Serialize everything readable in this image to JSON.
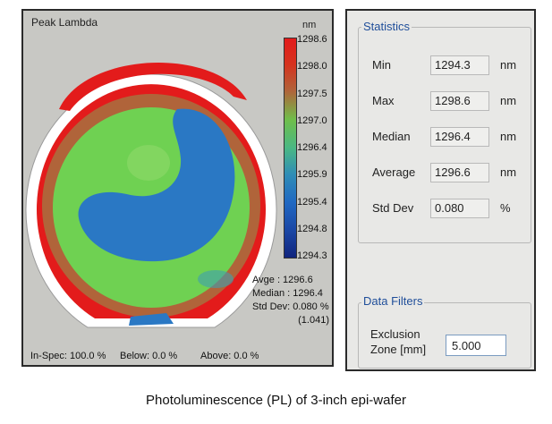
{
  "map": {
    "title": "Peak Lambda",
    "unit": "nm",
    "scale_labels": [
      "1298.6",
      "1298.0",
      "1297.5",
      "1297.0",
      "1296.4",
      "1295.9",
      "1295.4",
      "1294.8",
      "1294.3"
    ],
    "avge_label": "Avge",
    "avge_value": ": 1296.6",
    "median_label": "Median",
    "median_value": ": 1296.4",
    "stddev_label": "Std Dev",
    "stddev_value": ": 0.080 %",
    "stddev_extra": "(1.041)",
    "inspec": "In-Spec: 100.0 %",
    "below": "Below:  0.0 %",
    "above": "Above:  0.0 %",
    "zone_colors": {
      "rim": "#e31b1b",
      "ring": "#b0643a",
      "green": "#6fd152",
      "blue": "#2a78c4"
    }
  },
  "statistics": {
    "title": "Statistics",
    "rows": [
      {
        "label": "Min",
        "value": "1294.3",
        "unit": "nm"
      },
      {
        "label": "Max",
        "value": "1298.6",
        "unit": "nm"
      },
      {
        "label": "Median",
        "value": "1296.4",
        "unit": "nm"
      },
      {
        "label": "Average",
        "value": "1296.6",
        "unit": "nm"
      },
      {
        "label": "Std Dev",
        "value": "0.080",
        "unit": "%"
      }
    ]
  },
  "filters": {
    "title": "Data Filters",
    "exclusion_label_1": "Exclusion",
    "exclusion_label_2": "Zone [mm]",
    "exclusion_value": "5.000"
  },
  "caption": "Photoluminescence (PL) of 3-inch epi-wafer"
}
